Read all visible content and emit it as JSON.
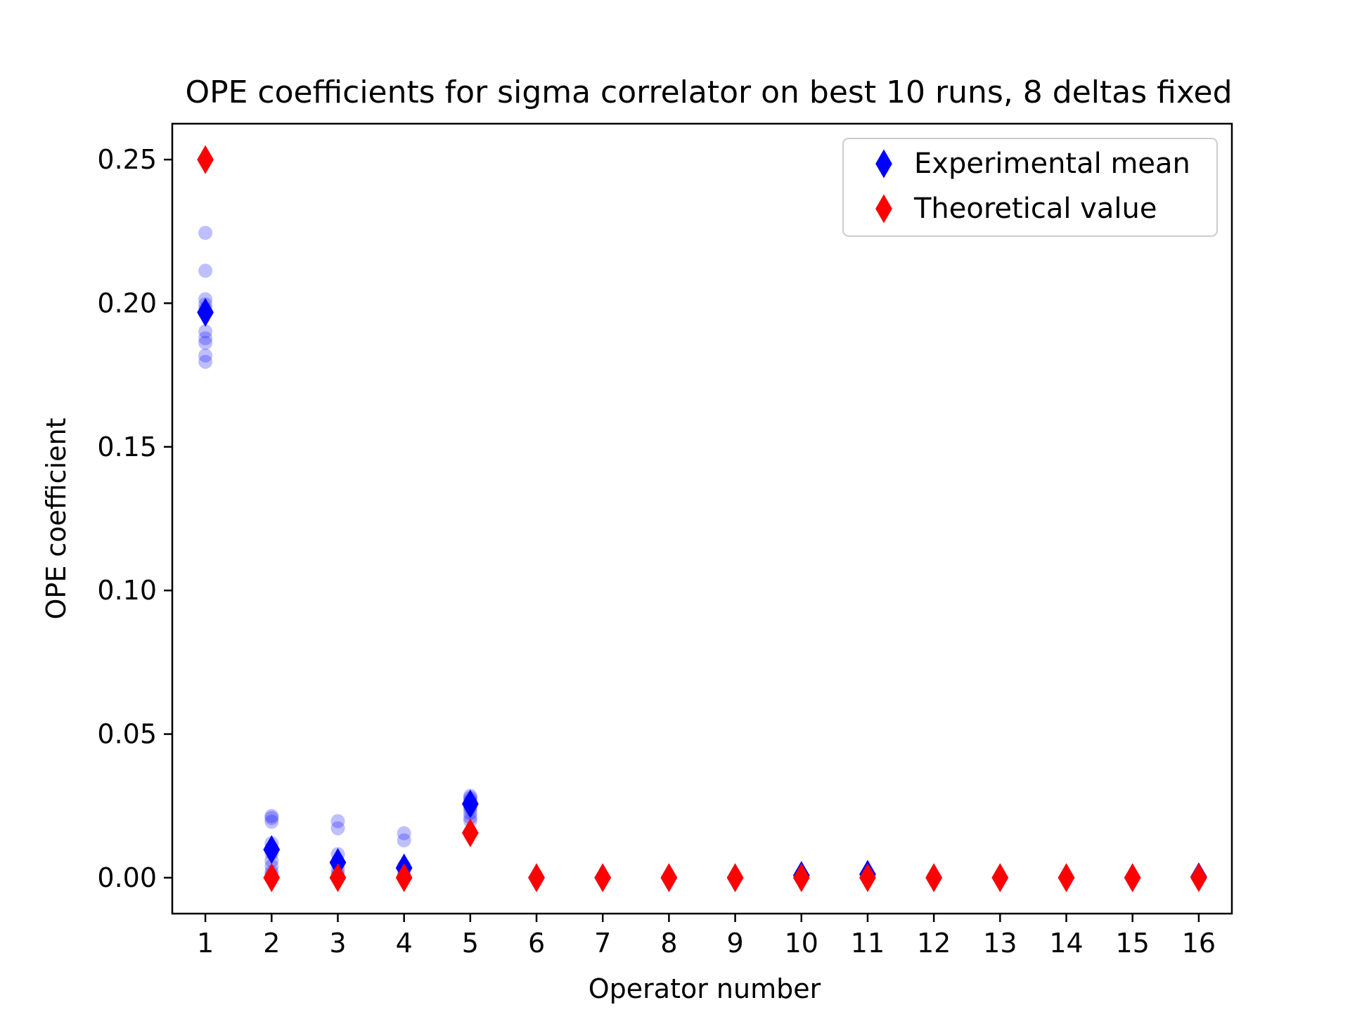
{
  "chart_data": {
    "type": "scatter",
    "title": "OPE coefficients for sigma correlator on best 10 runs, 8 deltas fixed",
    "xlabel": "Operator number",
    "ylabel": "OPE coefficient",
    "xlim": [
      0.5,
      16.5
    ],
    "ylim": [
      -0.0125,
      0.2625
    ],
    "xticks": [
      "1",
      "2",
      "3",
      "4",
      "5",
      "6",
      "7",
      "8",
      "9",
      "10",
      "11",
      "12",
      "13",
      "14",
      "15",
      "16"
    ],
    "yticks": [
      "0.00",
      "0.05",
      "0.10",
      "0.15",
      "0.20",
      "0.25"
    ],
    "legend_position": "upper right",
    "grid": false,
    "runs": [
      {
        "x": 1,
        "values": [
          0.2245,
          0.2113,
          0.2014,
          0.1996,
          0.1981,
          0.1902,
          0.1878,
          0.1862,
          0.1818,
          0.1796
        ]
      },
      {
        "x": 2,
        "values": [
          0.0215,
          0.0208,
          0.0195,
          0.012,
          0.0102,
          0.0085,
          0.006,
          0.004,
          0.002,
          0.001
        ]
      },
      {
        "x": 3,
        "values": [
          0.0197,
          0.0172,
          0.0082,
          0.005,
          0.003,
          0.0015,
          0.0005,
          0.0002,
          0.0001,
          0.0
        ]
      },
      {
        "x": 4,
        "values": [
          0.0155,
          0.013,
          0.004,
          0.001,
          0.0005,
          0.0002,
          0.0001,
          0.0,
          0.0,
          0.0
        ]
      },
      {
        "x": 5,
        "values": [
          0.0285,
          0.0278,
          0.027,
          0.0262,
          0.0255,
          0.0248,
          0.024,
          0.0225,
          0.021,
          0.0198
        ]
      }
    ],
    "series": [
      {
        "name": "Experimental mean",
        "color": "#0000ff",
        "marker": "thin-diamond",
        "x": [
          1,
          2,
          3,
          4,
          5,
          6,
          7,
          8,
          9,
          10,
          11,
          12,
          13,
          14,
          15,
          16
        ],
        "values": [
          0.1968,
          0.0098,
          0.0053,
          0.0034,
          0.0257,
          0.0,
          0.0,
          0.0,
          0.0,
          0.0008,
          0.0012,
          0.0,
          0.0,
          0.0,
          0.0,
          0.0003
        ]
      },
      {
        "name": "Theoretical value",
        "color": "#ff0000",
        "marker": "thin-diamond",
        "x": [
          1,
          2,
          3,
          4,
          5,
          6,
          7,
          8,
          9,
          10,
          11,
          12,
          13,
          14,
          15,
          16
        ],
        "values": [
          0.25,
          0.0,
          0.0,
          0.0,
          0.0156,
          0.0,
          0.0,
          0.0,
          0.0,
          0.0,
          0.0,
          0.0,
          0.0,
          0.0,
          0.0,
          0.0
        ]
      }
    ],
    "run_color": "#0000ff",
    "run_opacity": 0.25
  }
}
